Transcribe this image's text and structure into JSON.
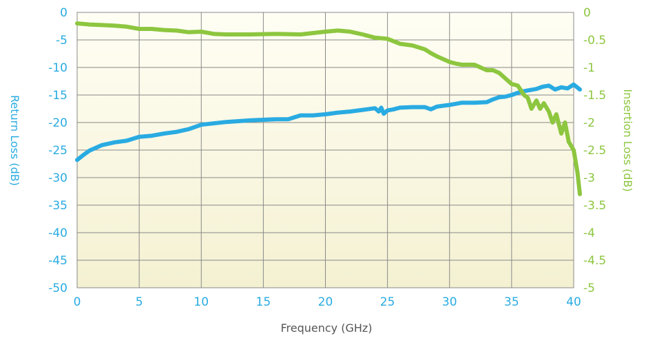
{
  "chart_data": {
    "type": "line",
    "xlabel": "Frequency (GHz)",
    "ylabel_left": "Return Loss (dB)",
    "ylabel_right": "Insertion Loss (dB)",
    "xlim": [
      0,
      40
    ],
    "ylim_left": [
      -50,
      0
    ],
    "ylim_right": [
      -5,
      0
    ],
    "x_ticks": [
      "0",
      "5",
      "10",
      "15",
      "20",
      "25",
      "30",
      "35",
      "40"
    ],
    "y_left_ticks": [
      "0",
      "-5",
      "-10",
      "-15",
      "-20",
      "-25",
      "-30",
      "-35",
      "-40",
      "-45",
      "-50"
    ],
    "y_right_ticks": [
      "0",
      "-0.5",
      "-1",
      "-1.5",
      "-2",
      "-2.5",
      "-3",
      "-3.5",
      "-4",
      "-4.5",
      "-5"
    ],
    "grid": true,
    "colors": {
      "return_loss": "#29abe2",
      "insertion_loss": "#8dc63f",
      "grid": "#888888",
      "background_top": "#fffef4",
      "background_bottom": "#f4f1d2"
    },
    "series": [
      {
        "axis": "left",
        "x": [
          0,
          0.5,
          1,
          2,
          3,
          4,
          5,
          6,
          7,
          8,
          9,
          10,
          12,
          14,
          16,
          17,
          18,
          19,
          20,
          21,
          22,
          23,
          24,
          24.3,
          24.5,
          24.7,
          25,
          25.5,
          26,
          27,
          28,
          28.5,
          29,
          30,
          31,
          32,
          33,
          33.5,
          34,
          34.5,
          35,
          35.5,
          36,
          37,
          37.5,
          38,
          38.5,
          39,
          39.5,
          40,
          40.5
        ],
        "y": [
          -26.8,
          -25.9,
          -25.1,
          -24.1,
          -23.6,
          -23.3,
          -22.6,
          -22.4,
          -22,
          -21.7,
          -21.2,
          -20.4,
          -19.9,
          -19.6,
          -19.4,
          -19.4,
          -18.7,
          -18.7,
          -18.5,
          -18.2,
          -18,
          -17.7,
          -17.4,
          -18,
          -17.3,
          -18.4,
          -17.8,
          -17.6,
          -17.3,
          -17.2,
          -17.2,
          -17.6,
          -17.1,
          -16.8,
          -16.4,
          -16.4,
          -16.3,
          -15.8,
          -15.4,
          -15.3,
          -15,
          -14.6,
          -14.3,
          -13.9,
          -13.5,
          -13.3,
          -14,
          -13.6,
          -13.8,
          -13.1,
          -14
        ]
      },
      {
        "axis": "right",
        "x": [
          0,
          1,
          2,
          3,
          4,
          5,
          6,
          7,
          8,
          9,
          10,
          11,
          12,
          14,
          16,
          18,
          20,
          21,
          22,
          23,
          24,
          25,
          26,
          27,
          28,
          28.5,
          29,
          30,
          30.5,
          31,
          32,
          33,
          33.5,
          34,
          34.5,
          35,
          35.5,
          36,
          36.3,
          36.6,
          37,
          37.3,
          37.6,
          38,
          38.3,
          38.6,
          39,
          39.3,
          39.6,
          40,
          40.3,
          40.5
        ],
        "y": [
          -0.2,
          -0.22,
          -0.23,
          -0.24,
          -0.26,
          -0.3,
          -0.3,
          -0.32,
          -0.33,
          -0.36,
          -0.35,
          -0.39,
          -0.4,
          -0.4,
          -0.39,
          -0.4,
          -0.35,
          -0.33,
          -0.35,
          -0.4,
          -0.46,
          -0.48,
          -0.57,
          -0.6,
          -0.67,
          -0.74,
          -0.8,
          -0.9,
          -0.93,
          -0.95,
          -0.95,
          -1.05,
          -1.05,
          -1.1,
          -1.2,
          -1.3,
          -1.33,
          -1.5,
          -1.55,
          -1.75,
          -1.6,
          -1.75,
          -1.65,
          -1.8,
          -2.0,
          -1.85,
          -2.2,
          -2.0,
          -2.35,
          -2.5,
          -2.9,
          -3.3
        ]
      }
    ]
  }
}
